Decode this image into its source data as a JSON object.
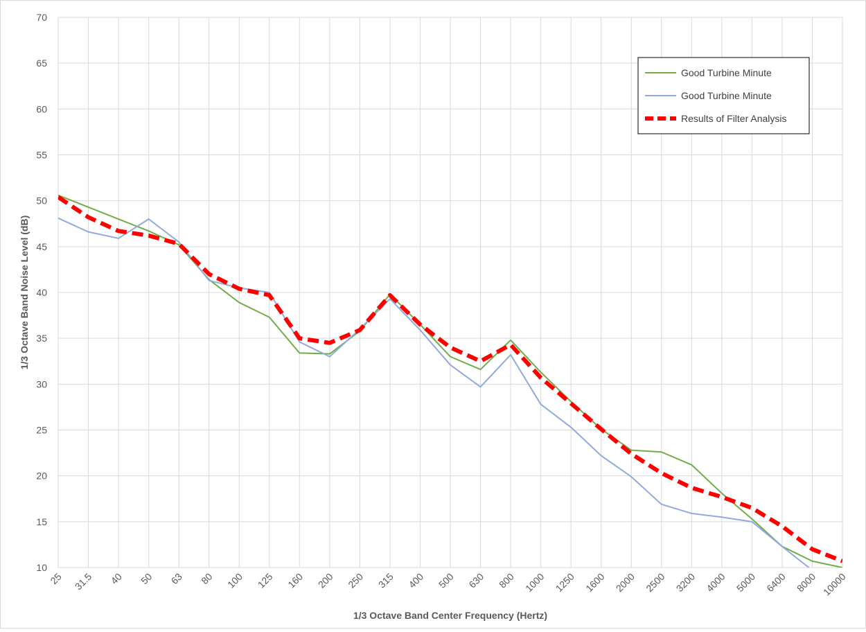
{
  "chart_data": {
    "type": "line",
    "x_label": "1/3 Octave Band Center Frequency (Hertz)",
    "y_label": "1/3 Octave Band Noise Level (dB)",
    "categories": [
      "25",
      "31.5",
      "40",
      "50",
      "63",
      "80",
      "100",
      "125",
      "160",
      "200",
      "250",
      "315",
      "400",
      "500",
      "630",
      "800",
      "1000",
      "1250",
      "1600",
      "2000",
      "2500",
      "3200",
      "4000",
      "5000",
      "6400",
      "8000",
      "10000"
    ],
    "series": [
      {
        "name": "Good Turbine Minute",
        "color": "#70ad47",
        "dashed": false,
        "values": [
          50.6,
          49.3,
          48.0,
          46.7,
          45.2,
          41.4,
          38.9,
          37.3,
          33.4,
          33.3,
          35.8,
          39.8,
          36.5,
          33.0,
          31.6,
          34.8,
          31.3,
          28.1,
          25.1,
          22.8,
          22.6,
          21.2,
          18.1,
          15.3,
          12.3,
          10.7,
          10.0
        ]
      },
      {
        "name": "Good Turbine Minute",
        "color": "#8faadc",
        "dashed": false,
        "values": [
          48.1,
          46.6,
          45.9,
          48.0,
          45.5,
          41.3,
          40.5,
          40.0,
          34.6,
          33.0,
          36.0,
          39.3,
          35.9,
          32.1,
          29.7,
          33.2,
          27.8,
          25.3,
          22.2,
          19.9,
          16.9,
          15.9,
          15.5,
          15.0,
          12.3,
          9.7,
          null
        ]
      },
      {
        "name": "Results of Filter Analysis",
        "color": "#ff0000",
        "dashed": true,
        "values": [
          50.4,
          48.2,
          46.7,
          46.2,
          45.3,
          42.0,
          40.4,
          39.7,
          35.0,
          34.5,
          35.9,
          39.7,
          36.5,
          34.0,
          32.5,
          34.3,
          30.7,
          27.9,
          25.1,
          22.4,
          20.3,
          18.7,
          17.7,
          16.5,
          14.5,
          12.0,
          10.7
        ]
      }
    ],
    "ylim": [
      10,
      70
    ],
    "yticks": [
      10,
      15,
      20,
      25,
      30,
      35,
      40,
      45,
      50,
      55,
      60,
      65,
      70
    ],
    "grid": true,
    "legend": "top-right"
  }
}
